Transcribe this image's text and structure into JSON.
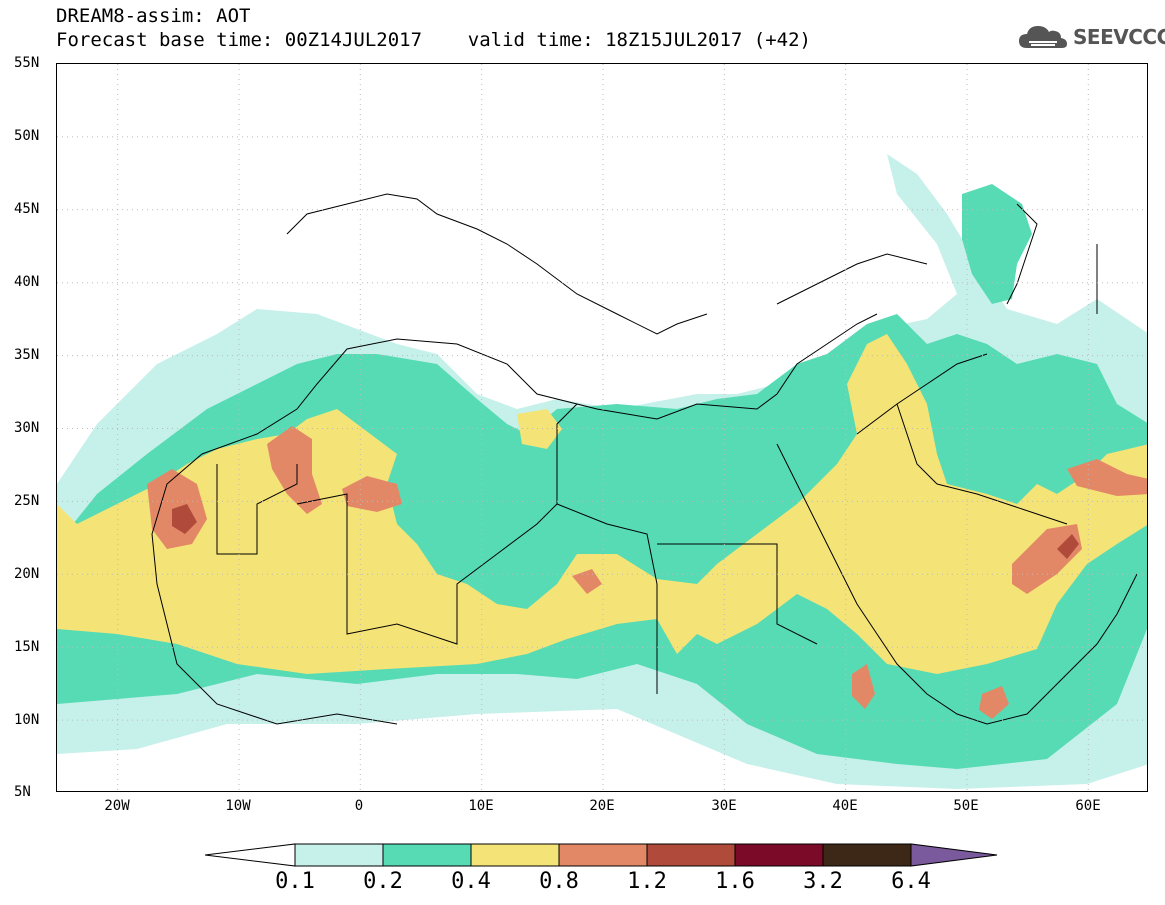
{
  "title": {
    "line1": "DREAM8-assim: AOT",
    "line2": "Forecast base time: 00Z14JUL2017    valid time: 18Z15JUL2017 (+42)"
  },
  "logo": {
    "text": "SEEVCCC",
    "icon": "cloud-icon"
  },
  "map": {
    "lon_range": [
      -25,
      65
    ],
    "lat_range": [
      5,
      55
    ],
    "lat_labels": [
      "55N",
      "50N",
      "45N",
      "40N",
      "35N",
      "30N",
      "25N",
      "20N",
      "15N",
      "10N",
      "5N"
    ],
    "lon_labels": [
      "20W",
      "10W",
      "0",
      "10E",
      "20E",
      "30E",
      "40E",
      "50E",
      "60E"
    ]
  },
  "colorbar": {
    "labels": [
      "0.1",
      "0.2",
      "0.4",
      "0.8",
      "1.2",
      "1.6",
      "3.2",
      "6.4"
    ],
    "colors": [
      "#ffffff",
      "#c6f0ea",
      "#56dbb4",
      "#f4e377",
      "#e38867",
      "#b04a3a",
      "#7a0a28",
      "#3d2716",
      "#7a5a9c"
    ]
  }
}
